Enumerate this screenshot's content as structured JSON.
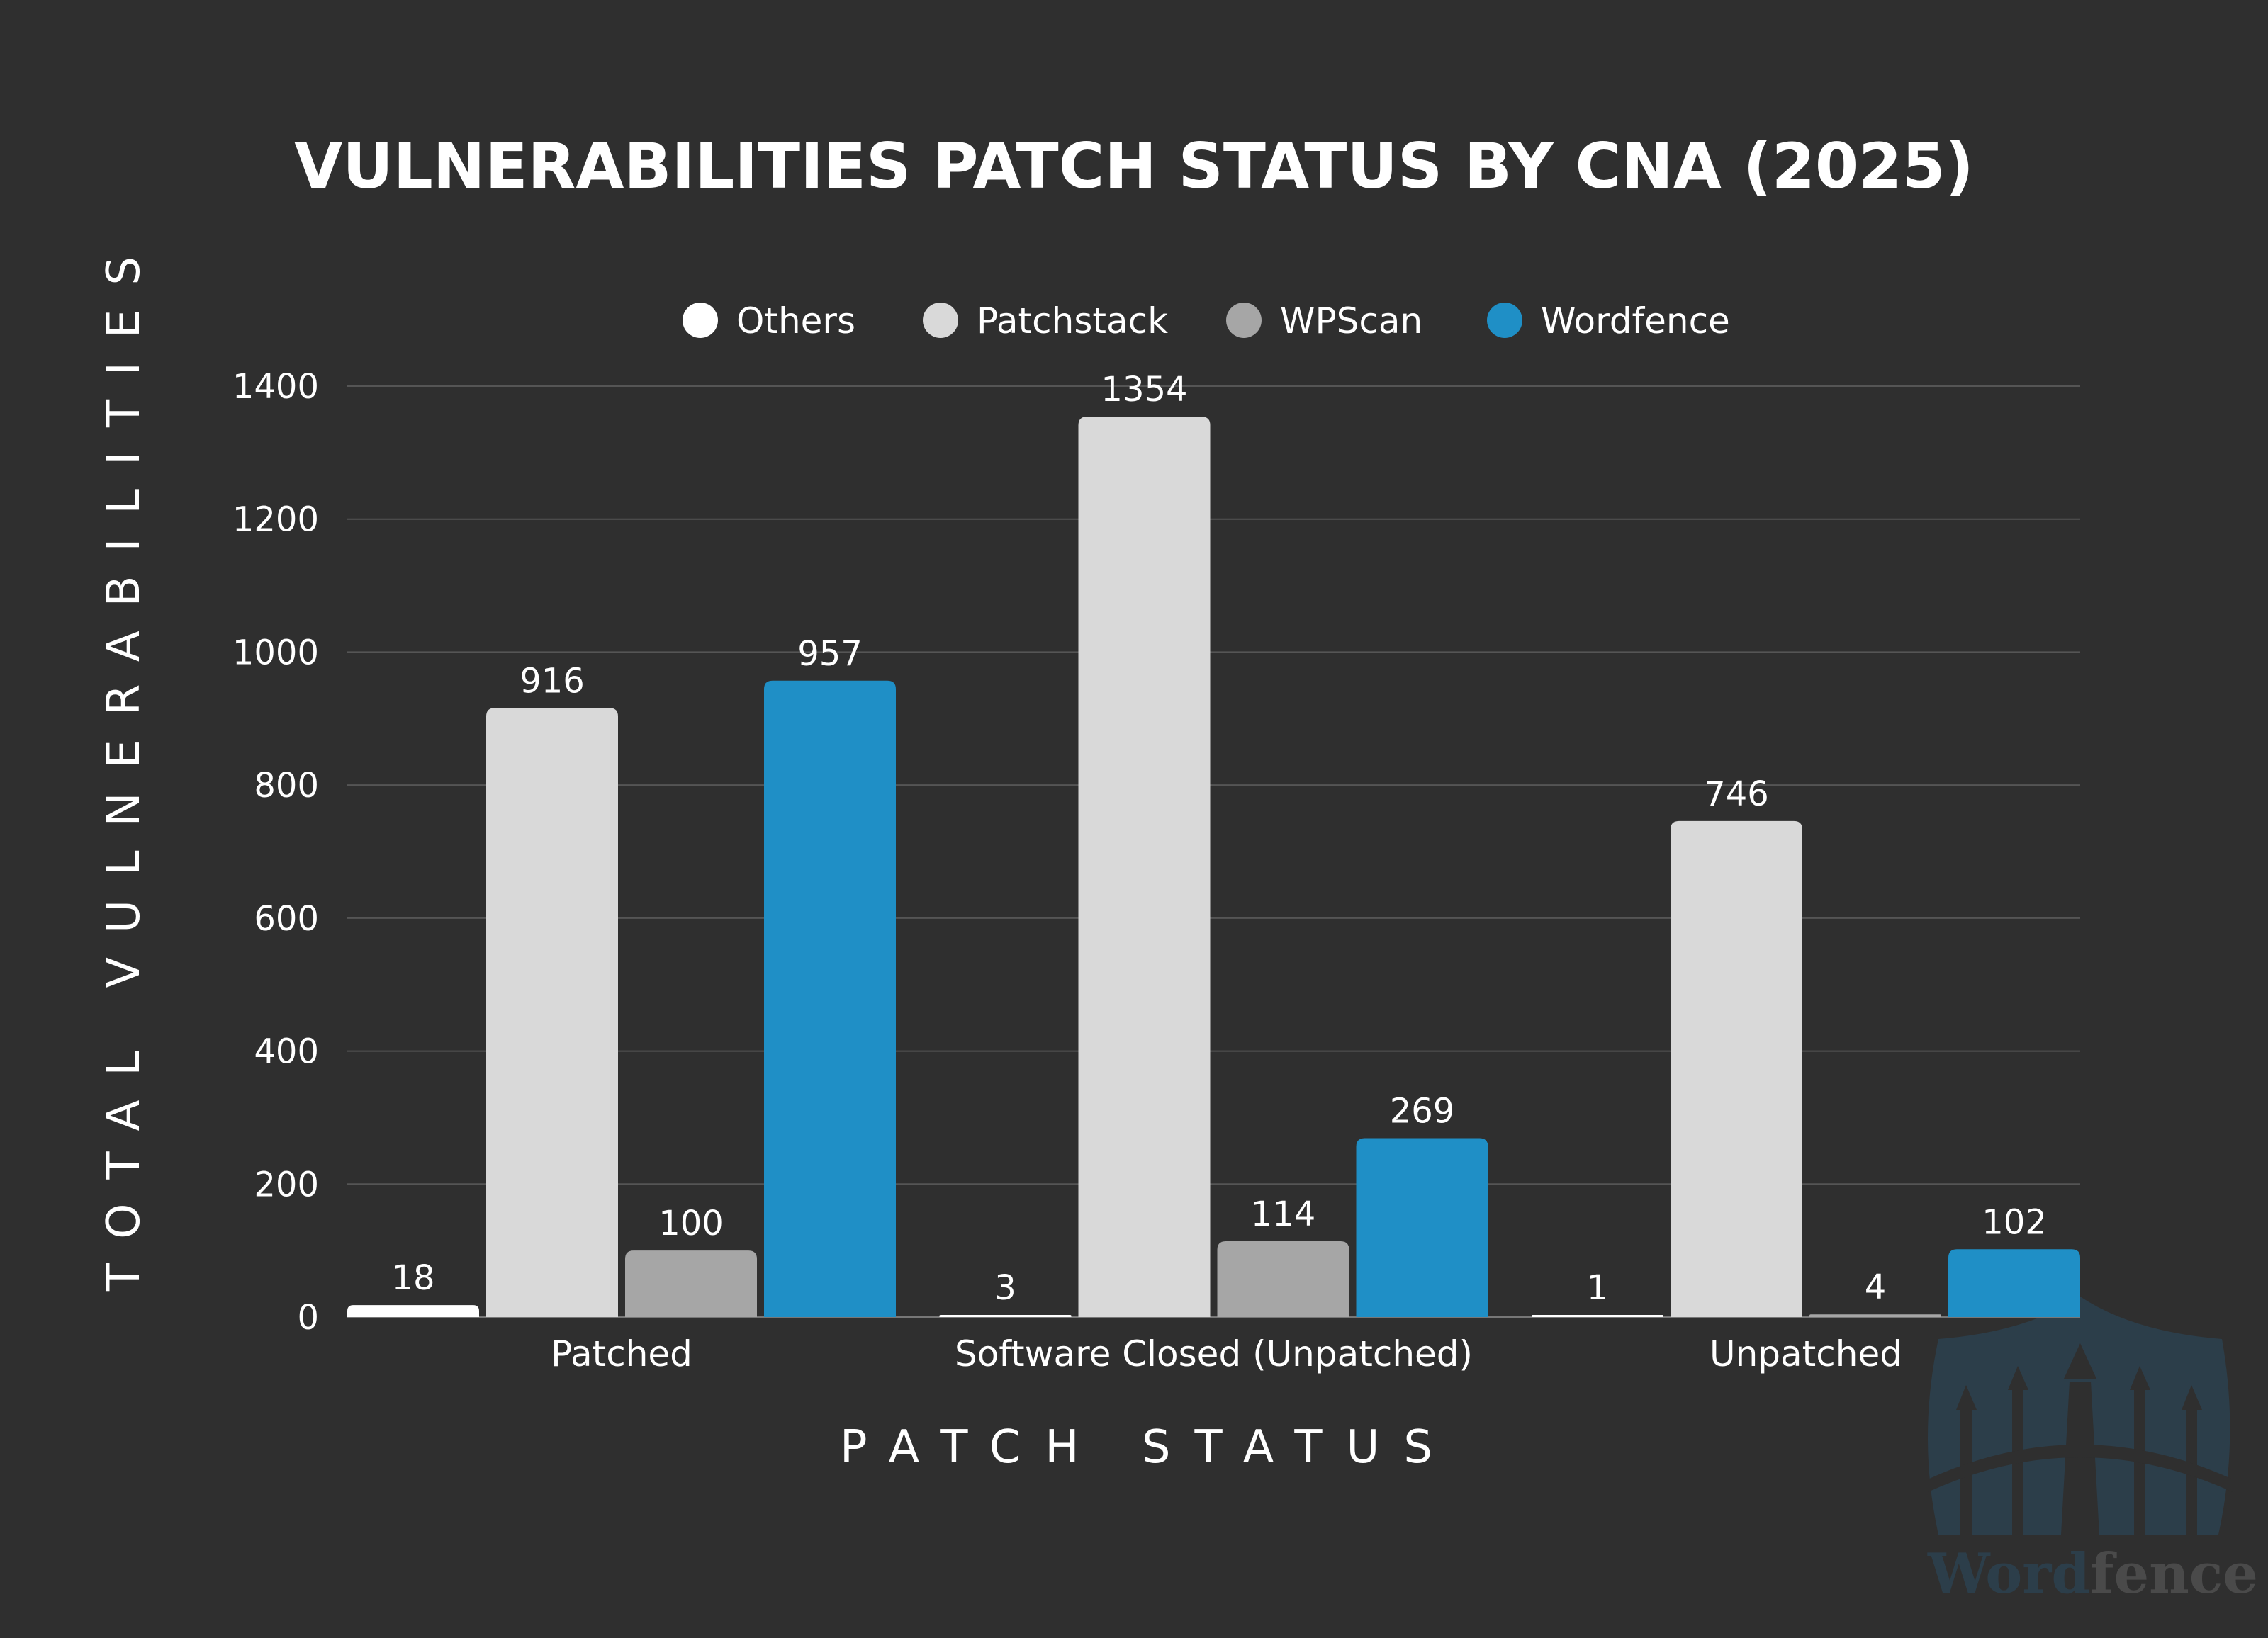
{
  "chart_data": {
    "type": "bar",
    "title": "VULNERABILITIES PATCH STATUS BY CNA (2025)",
    "xlabel": "PATCH STATUS",
    "ylabel": "TOTAL VULNERABILITIES",
    "ylim": [
      0,
      1400
    ],
    "yticks": [
      0,
      200,
      400,
      600,
      800,
      1000,
      1200,
      1400
    ],
    "grid": true,
    "legend_placement": "top-center",
    "categories": [
      "Patched",
      "Software Closed (Unpatched)",
      "Unpatched"
    ],
    "series": [
      {
        "name": "Others",
        "color": "#ffffff",
        "values": [
          18,
          3,
          1
        ]
      },
      {
        "name": "Patchstack",
        "color": "#d9d9d9",
        "values": [
          916,
          1354,
          746
        ]
      },
      {
        "name": "WPScan",
        "color": "#a6a6a6",
        "values": [
          100,
          114,
          4
        ]
      },
      {
        "name": "Wordfence",
        "color": "#1f8fc6",
        "values": [
          957,
          269,
          102
        ]
      }
    ]
  },
  "colors": {
    "background": "#2f2f2f",
    "grid": "#555555",
    "watermark_blue": "#2c3e4a",
    "watermark_gray": "#4a4a4a"
  },
  "watermark": {
    "logo_text_blue": "Word",
    "logo_text_gray": "fence",
    "icon": "wordfence-fence-shield-icon"
  }
}
